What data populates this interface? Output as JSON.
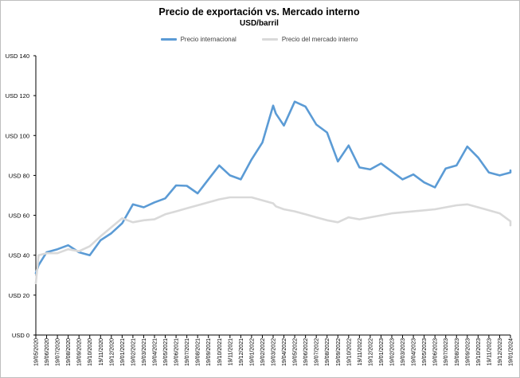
{
  "chart_data": {
    "type": "line",
    "title": "Precio de exportación vs. Mercado interno",
    "subtitle": "USD/barril",
    "ylim": [
      0,
      140
    ],
    "y_ticks": [
      0,
      20,
      40,
      60,
      80,
      100,
      120,
      140
    ],
    "y_tick_labels": [
      "USD 0",
      "USD 20",
      "USD 40",
      "USD 60",
      "USD 80",
      "USD 100",
      "USD 120",
      "USD 140"
    ],
    "x_tick_labels": [
      "19/05/2020",
      "19/06/2020",
      "19/07/2020",
      "19/08/2020",
      "19/09/2020",
      "19/10/2020",
      "19/11/2020",
      "19/12/2020",
      "19/01/2021",
      "19/02/2021",
      "19/03/2021",
      "19/04/2021",
      "19/05/2021",
      "19/06/2021",
      "19/07/2021",
      "19/08/2021",
      "19/09/2021",
      "19/10/2021",
      "19/11/2021",
      "19/12/2021",
      "19/01/2022",
      "19/02/2022",
      "19/03/2022",
      "19/04/2022",
      "19/05/2022",
      "19/06/2022",
      "19/07/2022",
      "19/08/2022",
      "19/09/2022",
      "19/10/2022",
      "19/11/2022",
      "19/12/2022",
      "19/01/2023",
      "19/02/2023",
      "19/03/2023",
      "19/04/2023",
      "19/05/2023",
      "19/06/2023",
      "19/07/2023",
      "19/08/2023",
      "19/09/2023",
      "19/10/2023",
      "19/11/2023",
      "19/12/2023",
      "19/01/2024"
    ],
    "legend_position": "top",
    "grid": false,
    "series": [
      {
        "name": "Precio internacional",
        "color": "#5b9bd5",
        "x": [
          "19/05/2020",
          "19/05/2020",
          "19/06/2020",
          "19/07/2020",
          "19/08/2020",
          "19/09/2020",
          "19/10/2020",
          "19/11/2020",
          "19/12/2020",
          "19/01/2021",
          "19/02/2021",
          "19/03/2021",
          "19/04/2021",
          "19/05/2021",
          "19/06/2021",
          "19/07/2021",
          "19/08/2021",
          "19/09/2021",
          "19/10/2021",
          "19/11/2021",
          "19/12/2021",
          "19/01/2022",
          "19/02/2022",
          "19/03/2022",
          "19/03/2022",
          "19/04/2022",
          "19/05/2022",
          "19/06/2022",
          "19/07/2022",
          "19/08/2022",
          "19/09/2022",
          "19/10/2022",
          "19/11/2022",
          "19/12/2022",
          "19/01/2023",
          "19/02/2023",
          "19/03/2023",
          "19/04/2023",
          "19/05/2023",
          "19/06/2023",
          "19/07/2023",
          "19/08/2023",
          "19/09/2023",
          "19/10/2023",
          "19/11/2023",
          "19/12/2023",
          "19/01/2024",
          "19/01/2024"
        ],
        "values": [
          31,
          35,
          41.5,
          43,
          45,
          41.5,
          40,
          47.5,
          51,
          56,
          65.5,
          64,
          66.5,
          68.5,
          75,
          74.8,
          71,
          78,
          85,
          80,
          78,
          88,
          96.5,
          115,
          111,
          105,
          117,
          114.5,
          105.5,
          101.5,
          87,
          95,
          84,
          83,
          86,
          82,
          78,
          80.5,
          76.5,
          74,
          83.5,
          85,
          94.5,
          89,
          81.5,
          80,
          81.5,
          82.5
        ]
      },
      {
        "name": "Precio del mercado interno",
        "color": "#d9d9d9",
        "x": [
          "19/05/2020",
          "19/05/2020",
          "19/06/2020",
          "19/07/2020",
          "19/08/2020",
          "19/09/2020",
          "19/10/2020",
          "19/11/2020",
          "19/12/2020",
          "19/01/2021",
          "19/02/2021",
          "19/03/2021",
          "19/04/2021",
          "19/05/2021",
          "19/06/2021",
          "19/07/2021",
          "19/08/2021",
          "19/09/2021",
          "19/10/2021",
          "19/11/2021",
          "19/12/2021",
          "19/01/2022",
          "19/02/2022",
          "19/03/2022",
          "19/03/2022",
          "19/04/2022",
          "19/05/2022",
          "19/06/2022",
          "19/07/2022",
          "19/08/2022",
          "19/09/2022",
          "19/10/2022",
          "19/11/2022",
          "19/12/2022",
          "19/01/2023",
          "19/02/2023",
          "19/03/2023",
          "19/04/2023",
          "19/05/2023",
          "19/06/2023",
          "19/07/2023",
          "19/08/2023",
          "19/09/2023",
          "19/10/2023",
          "19/11/2023",
          "19/12/2023",
          "19/01/2024",
          "19/01/2024"
        ],
        "values": [
          26,
          40,
          41,
          41,
          43,
          42,
          44.5,
          49.5,
          54,
          58.5,
          56.5,
          57.5,
          58,
          60.5,
          62,
          63.5,
          65,
          66.5,
          68,
          69,
          69,
          69,
          67.5,
          66,
          64.5,
          63,
          62,
          60.5,
          59,
          57.5,
          56.5,
          59,
          58,
          59,
          60,
          61,
          61.5,
          62,
          62.5,
          63,
          64,
          65,
          65.5,
          64,
          62.5,
          61,
          57,
          55
        ]
      }
    ]
  }
}
